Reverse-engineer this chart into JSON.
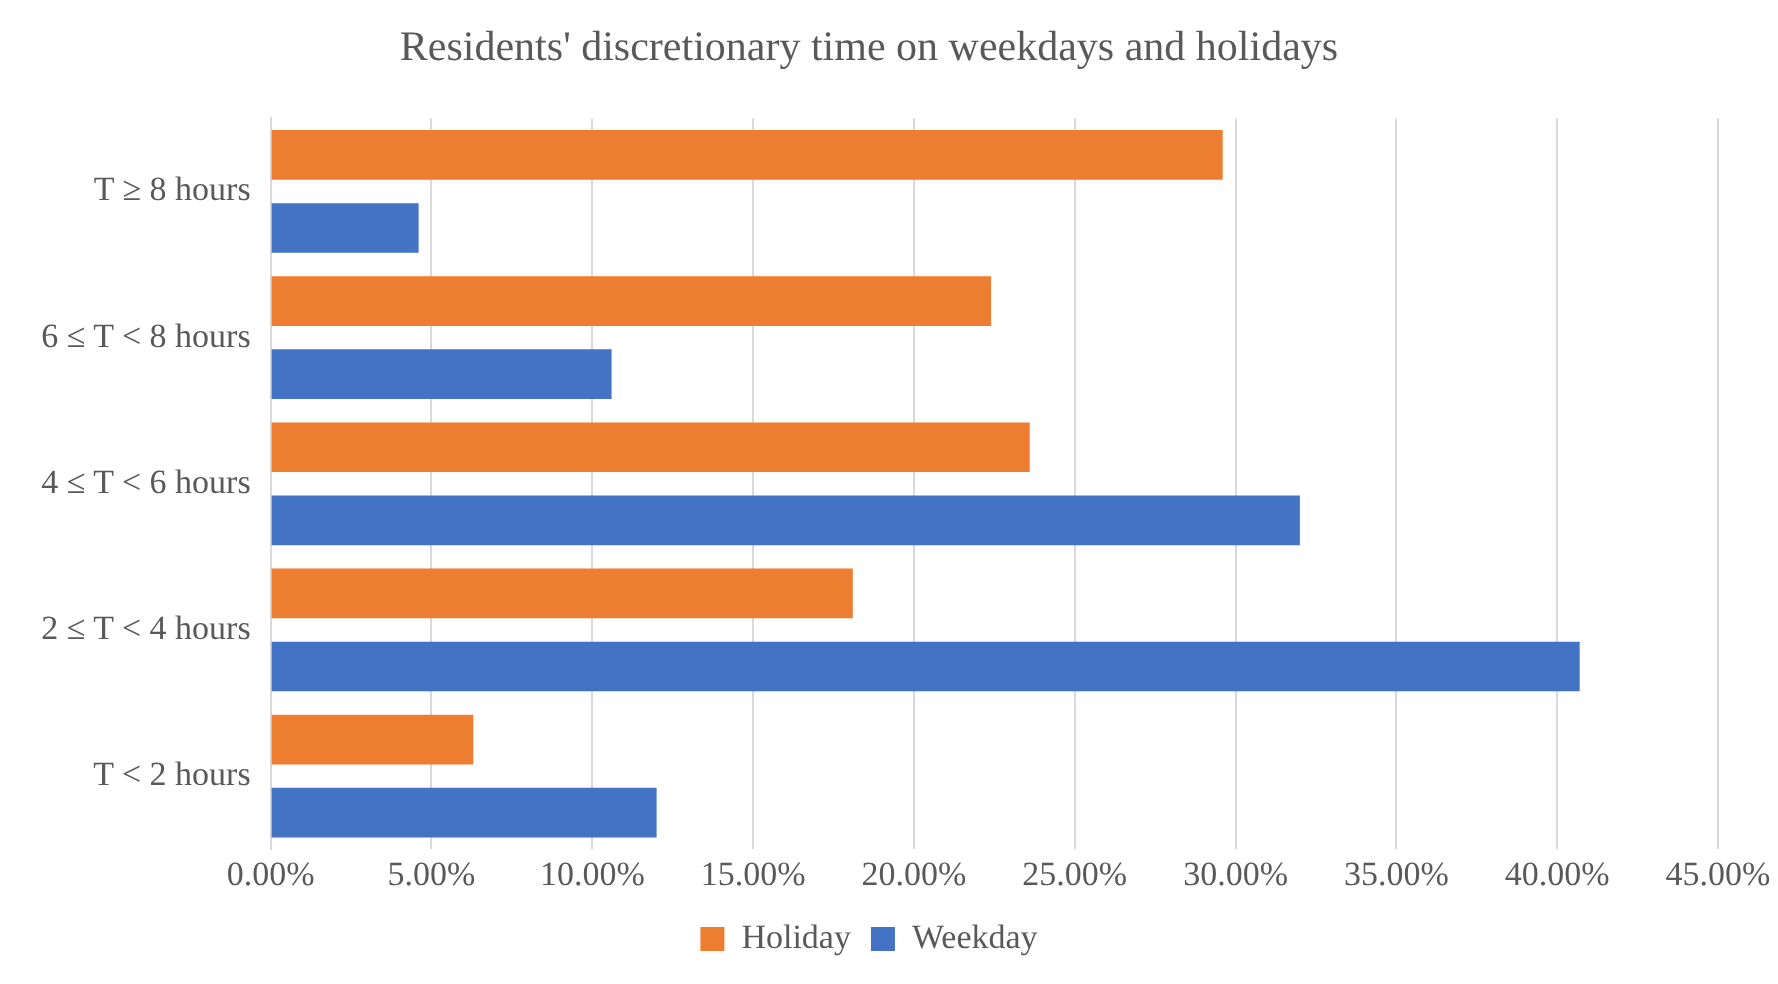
{
  "chart_data": {
    "type": "bar",
    "orientation": "horizontal",
    "title": "Residents' discretionary time on weekdays and holidays",
    "categories": [
      "T ≥ 8 hours",
      "6 ≤ T < 8 hours",
      "4 ≤ T < 6 hours",
      "2 ≤ T < 4 hours",
      "T < 2 hours"
    ],
    "series": [
      {
        "name": "Holiday",
        "color": "#ed7d31",
        "values": [
          29.6,
          22.4,
          23.6,
          18.1,
          6.3
        ]
      },
      {
        "name": "Weekday",
        "color": "#4472c4",
        "values": [
          4.6,
          10.6,
          32.0,
          40.7,
          12.0
        ]
      }
    ],
    "xlim": [
      0,
      45
    ],
    "xticks": [
      {
        "value": 0,
        "label": "0.00%"
      },
      {
        "value": 5,
        "label": "5.00%"
      },
      {
        "value": 10,
        "label": "10.00%"
      },
      {
        "value": 15,
        "label": "15.00%"
      },
      {
        "value": 20,
        "label": "20.00%"
      },
      {
        "value": 25,
        "label": "25.00%"
      },
      {
        "value": 30,
        "label": "30.00%"
      },
      {
        "value": 35,
        "label": "35.00%"
      },
      {
        "value": 40,
        "label": "40.00%"
      },
      {
        "value": 45,
        "label": "45.00%"
      }
    ],
    "grid": "x",
    "legend": "bottom"
  }
}
